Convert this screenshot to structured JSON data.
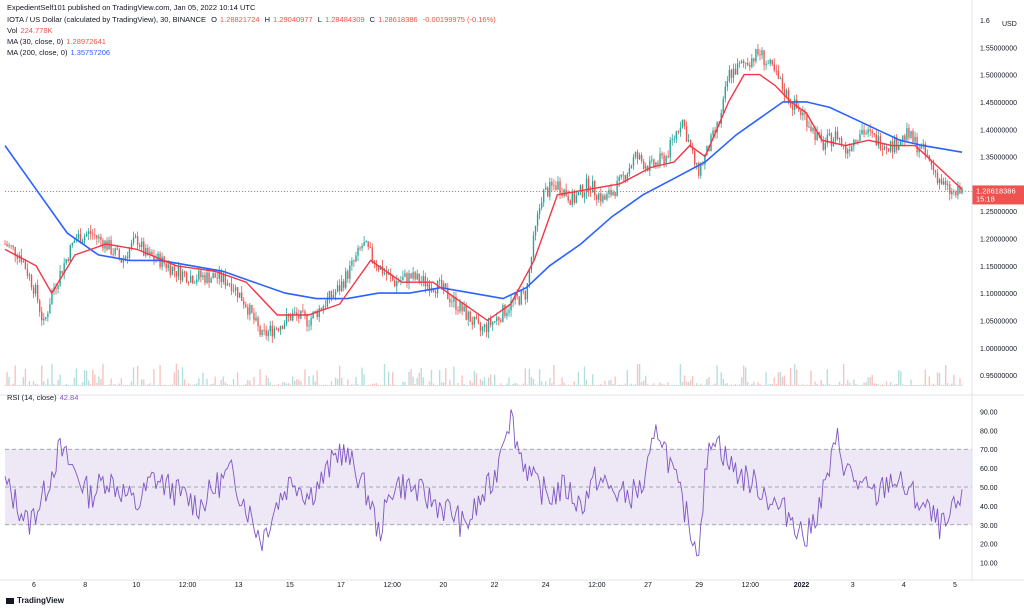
{
  "header": {
    "publisher": "ExpedientSelf101 published on TradingView.com, Jan 05, 2022 10:14 UTC",
    "symbol_line": "IOTA / US Dollar (calculated by TradingView), 30, BINANCE",
    "ohlc": {
      "o_label": "O",
      "o": "1.28821724",
      "h_label": "H",
      "h": "1.29040977",
      "l_label": "L",
      "l": "1.28484309",
      "c_label": "C",
      "c": "1.28618386",
      "change": "-0.00199975 (-0.16%)"
    },
    "vol_label": "Vol",
    "vol_value": "224.778K",
    "ma30_label": "MA (30, close, 0)",
    "ma30_value": "1.28972641",
    "ma200_label": "MA (200, close, 0)",
    "ma200_value": "1.35757206",
    "rsi_label": "RSI (14, close)",
    "rsi_value": "42.84"
  },
  "footer": {
    "brand": "TradingView"
  },
  "colors": {
    "up": "#26a69a",
    "down": "#ef5350",
    "ma30": "#f23645",
    "ma200": "#2962ff",
    "rsi": "#7e57c2",
    "rsi_band": "#ede7f6"
  },
  "chart_data": [
    {
      "type": "line",
      "title": "IOTA / US Dollar (calculated by TradingView), 30, BINANCE",
      "currency_label": "USD",
      "x_ticks": [
        "6",
        "8",
        "10",
        "12:00",
        "13",
        "15",
        "17",
        "12:00",
        "20",
        "22",
        "24",
        "12:00",
        "27",
        "29",
        "12:00",
        "2022",
        "3",
        "4",
        "5"
      ],
      "y_ticks": [
        "0.95000000",
        "1.00000000",
        "1.05000000",
        "1.10000000",
        "1.15000000",
        "1.20000000",
        "1.25000000",
        "1.30000000",
        "1.35000000",
        "1.40000000",
        "1.45000000",
        "1.50000000",
        "1.55000000",
        "1.6"
      ],
      "ylim": [
        0.93,
        1.6
      ],
      "last_price_label": "1.28618386",
      "last_price": 1.28618386,
      "countdown_label": "15:18",
      "price_path": [
        [
          0,
          1.19
        ],
        [
          2,
          1.17
        ],
        [
          4,
          1.1
        ],
        [
          5,
          1.04
        ],
        [
          6,
          1.1
        ],
        [
          9,
          1.2
        ],
        [
          11,
          1.21
        ],
        [
          13,
          1.19
        ],
        [
          15,
          1.16
        ],
        [
          17,
          1.2
        ],
        [
          18,
          1.17
        ],
        [
          20,
          1.16
        ],
        [
          22,
          1.14
        ],
        [
          24,
          1.13
        ],
        [
          27,
          1.13
        ],
        [
          29,
          1.12
        ],
        [
          31,
          1.08
        ],
        [
          33,
          1.02
        ],
        [
          35,
          1.04
        ],
        [
          37,
          1.06
        ],
        [
          39,
          1.05
        ],
        [
          41,
          1.08
        ],
        [
          43,
          1.11
        ],
        [
          45,
          1.16
        ],
        [
          46,
          1.19
        ],
        [
          48,
          1.15
        ],
        [
          50,
          1.12
        ],
        [
          52,
          1.13
        ],
        [
          54,
          1.12
        ],
        [
          56,
          1.11
        ],
        [
          58,
          1.08
        ],
        [
          60,
          1.05
        ],
        [
          61,
          1.03
        ],
        [
          63,
          1.05
        ],
        [
          65,
          1.08
        ],
        [
          67,
          1.1
        ],
        [
          68,
          1.2
        ],
        [
          69,
          1.28
        ],
        [
          71,
          1.3
        ],
        [
          73,
          1.27
        ],
        [
          75,
          1.3
        ],
        [
          77,
          1.27
        ],
        [
          79,
          1.3
        ],
        [
          81,
          1.35
        ],
        [
          83,
          1.33
        ],
        [
          85,
          1.35
        ],
        [
          87,
          1.42
        ],
        [
          89,
          1.32
        ],
        [
          90,
          1.35
        ],
        [
          92,
          1.42
        ],
        [
          93,
          1.5
        ],
        [
          95,
          1.52
        ],
        [
          97,
          1.54
        ],
        [
          99,
          1.5
        ],
        [
          101,
          1.45
        ],
        [
          103,
          1.42
        ],
        [
          105,
          1.37
        ],
        [
          107,
          1.39
        ],
        [
          108,
          1.36
        ],
        [
          110,
          1.4
        ],
        [
          112,
          1.38
        ],
        [
          114,
          1.37
        ],
        [
          116,
          1.39
        ],
        [
          118,
          1.36
        ],
        [
          120,
          1.31
        ],
        [
          121,
          1.29
        ],
        [
          122,
          1.28
        ],
        [
          123,
          1.286
        ]
      ],
      "series": [
        {
          "name": "MA (30, close, 0)",
          "values": [
            [
              0,
              1.18
            ],
            [
              4,
              1.15
            ],
            [
              6,
              1.1
            ],
            [
              9,
              1.17
            ],
            [
              13,
              1.19
            ],
            [
              17,
              1.18
            ],
            [
              22,
              1.15
            ],
            [
              27,
              1.14
            ],
            [
              31,
              1.12
            ],
            [
              35,
              1.06
            ],
            [
              39,
              1.06
            ],
            [
              43,
              1.08
            ],
            [
              47,
              1.16
            ],
            [
              51,
              1.12
            ],
            [
              55,
              1.12
            ],
            [
              59,
              1.08
            ],
            [
              62,
              1.05
            ],
            [
              65,
              1.08
            ],
            [
              68,
              1.16
            ],
            [
              71,
              1.28
            ],
            [
              75,
              1.29
            ],
            [
              79,
              1.3
            ],
            [
              83,
              1.33
            ],
            [
              86,
              1.34
            ],
            [
              88,
              1.37
            ],
            [
              90,
              1.35
            ],
            [
              93,
              1.45
            ],
            [
              95,
              1.5
            ],
            [
              97,
              1.5
            ],
            [
              99,
              1.48
            ],
            [
              101,
              1.45
            ],
            [
              103,
              1.43
            ],
            [
              105,
              1.38
            ],
            [
              108,
              1.37
            ],
            [
              111,
              1.38
            ],
            [
              114,
              1.37
            ],
            [
              117,
              1.37
            ],
            [
              120,
              1.33
            ],
            [
              123,
              1.29
            ]
          ]
        },
        {
          "name": "MA (200, close, 0)",
          "values": [
            [
              0,
              1.37
            ],
            [
              4,
              1.29
            ],
            [
              8,
              1.21
            ],
            [
              12,
              1.17
            ],
            [
              16,
              1.16
            ],
            [
              20,
              1.16
            ],
            [
              24,
              1.15
            ],
            [
              28,
              1.14
            ],
            [
              32,
              1.12
            ],
            [
              36,
              1.1
            ],
            [
              40,
              1.09
            ],
            [
              44,
              1.09
            ],
            [
              48,
              1.1
            ],
            [
              52,
              1.1
            ],
            [
              56,
              1.11
            ],
            [
              60,
              1.1
            ],
            [
              64,
              1.09
            ],
            [
              67,
              1.11
            ],
            [
              70,
              1.15
            ],
            [
              74,
              1.19
            ],
            [
              78,
              1.24
            ],
            [
              82,
              1.28
            ],
            [
              86,
              1.31
            ],
            [
              90,
              1.34
            ],
            [
              94,
              1.39
            ],
            [
              97,
              1.42
            ],
            [
              100,
              1.45
            ],
            [
              103,
              1.45
            ],
            [
              106,
              1.44
            ],
            [
              109,
              1.42
            ],
            [
              112,
              1.4
            ],
            [
              115,
              1.38
            ],
            [
              118,
              1.37
            ],
            [
              123,
              1.358
            ]
          ]
        }
      ]
    },
    {
      "type": "line",
      "title": "RSI (14, close)",
      "y_ticks": [
        "10.00",
        "20.00",
        "30.00",
        "40.00",
        "50.00",
        "60.00",
        "70.00",
        "80.00",
        "90.00"
      ],
      "ylim": [
        5,
        95
      ],
      "bands": [
        30,
        50,
        70
      ],
      "last_value": 42.84,
      "series": [
        {
          "name": "RSI (14, close)",
          "values": [
            [
              0,
              52
            ],
            [
              2,
              38
            ],
            [
              3,
              30
            ],
            [
              5,
              46
            ],
            [
              7,
              70
            ],
            [
              9,
              58
            ],
            [
              11,
              45
            ],
            [
              13,
              55
            ],
            [
              15,
              48
            ],
            [
              17,
              40
            ],
            [
              19,
              55
            ],
            [
              21,
              50
            ],
            [
              23,
              45
            ],
            [
              25,
              40
            ],
            [
              27,
              50
            ],
            [
              29,
              58
            ],
            [
              31,
              40
            ],
            [
              33,
              22
            ],
            [
              35,
              42
            ],
            [
              37,
              55
            ],
            [
              39,
              45
            ],
            [
              41,
              55
            ],
            [
              43,
              70
            ],
            [
              45,
              60
            ],
            [
              47,
              42
            ],
            [
              48,
              25
            ],
            [
              50,
              52
            ],
            [
              52,
              50
            ],
            [
              54,
              45
            ],
            [
              56,
              40
            ],
            [
              58,
              35
            ],
            [
              59,
              28
            ],
            [
              61,
              42
            ],
            [
              63,
              55
            ],
            [
              64,
              78
            ],
            [
              65,
              88
            ],
            [
              66,
              70
            ],
            [
              68,
              52
            ],
            [
              70,
              45
            ],
            [
              72,
              50
            ],
            [
              74,
              40
            ],
            [
              76,
              55
            ],
            [
              78,
              48
            ],
            [
              80,
              45
            ],
            [
              82,
              50
            ],
            [
              84,
              82
            ],
            [
              86,
              55
            ],
            [
              88,
              30
            ],
            [
              89,
              15
            ],
            [
              90,
              55
            ],
            [
              91,
              80
            ],
            [
              93,
              62
            ],
            [
              95,
              55
            ],
            [
              97,
              50
            ],
            [
              99,
              40
            ],
            [
              101,
              35
            ],
            [
              103,
              22
            ],
            [
              105,
              45
            ],
            [
              107,
              75
            ],
            [
              108,
              60
            ],
            [
              110,
              50
            ],
            [
              112,
              45
            ],
            [
              114,
              55
            ],
            [
              116,
              48
            ],
            [
              118,
              40
            ],
            [
              120,
              30
            ],
            [
              121,
              28
            ],
            [
              122,
              38
            ],
            [
              123,
              43
            ]
          ]
        }
      ]
    }
  ]
}
